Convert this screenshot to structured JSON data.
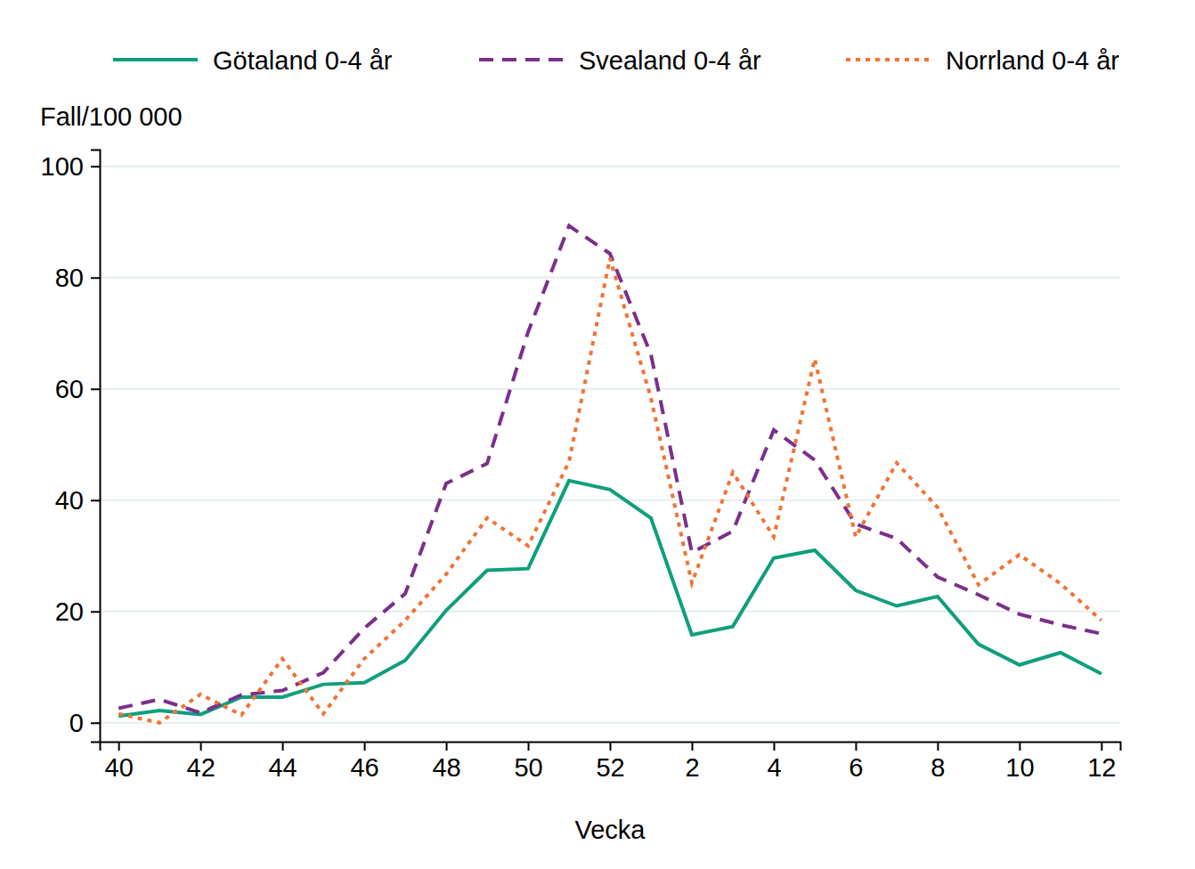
{
  "chart_data": {
    "type": "line",
    "y_label": "Fall/100 000",
    "x_label": "Vecka",
    "categories": [
      "40",
      null,
      "42",
      null,
      "44",
      null,
      "46",
      null,
      "48",
      null,
      "50",
      null,
      "52",
      null,
      "2",
      null,
      "4",
      null,
      "6",
      null,
      "8",
      null,
      "10",
      null,
      "12"
    ],
    "series": [
      {
        "name": "Götaland 0-4 år",
        "color": "#0f9f7c",
        "line_style": "solid",
        "values": [
          1.2,
          2.2,
          1.5,
          4.6,
          4.6,
          6.9,
          7.2,
          11.2,
          20.2,
          27.4,
          27.7,
          43.5,
          41.9,
          36.8,
          15.8,
          17.3,
          29.6,
          31.0,
          23.8,
          21.0,
          22.7,
          14.1,
          10.4,
          12.6,
          8.8
        ]
      },
      {
        "name": "Svealand 0-4 år",
        "color": "#7b2f8c",
        "line_style": "dashed",
        "values": [
          2.6,
          4.2,
          1.8,
          5.0,
          5.8,
          9.0,
          17.0,
          23.2,
          43.0,
          46.6,
          70.2,
          89.3,
          84.3,
          66.2,
          30.6,
          34.4,
          52.6,
          47.2,
          35.7,
          33.1,
          26.2,
          23.0,
          19.5,
          17.6,
          16.0
        ]
      },
      {
        "name": "Norrland 0-4 år",
        "color": "#f07436",
        "line_style": "dotted",
        "values": [
          1.6,
          0,
          5.1,
          1.4,
          11.5,
          1.6,
          11.5,
          18.4,
          26.7,
          36.8,
          31.8,
          46.9,
          83.5,
          58.4,
          25.1,
          45.0,
          33.4,
          65.4,
          33.4,
          46.7,
          38.7,
          24.8,
          30.2,
          25.0,
          18.4
        ]
      }
    ],
    "ylim": [
      -3.4,
      103
    ],
    "yticks": [
      0,
      20,
      40,
      60,
      80,
      100
    ],
    "grid": true,
    "legend": "top"
  }
}
